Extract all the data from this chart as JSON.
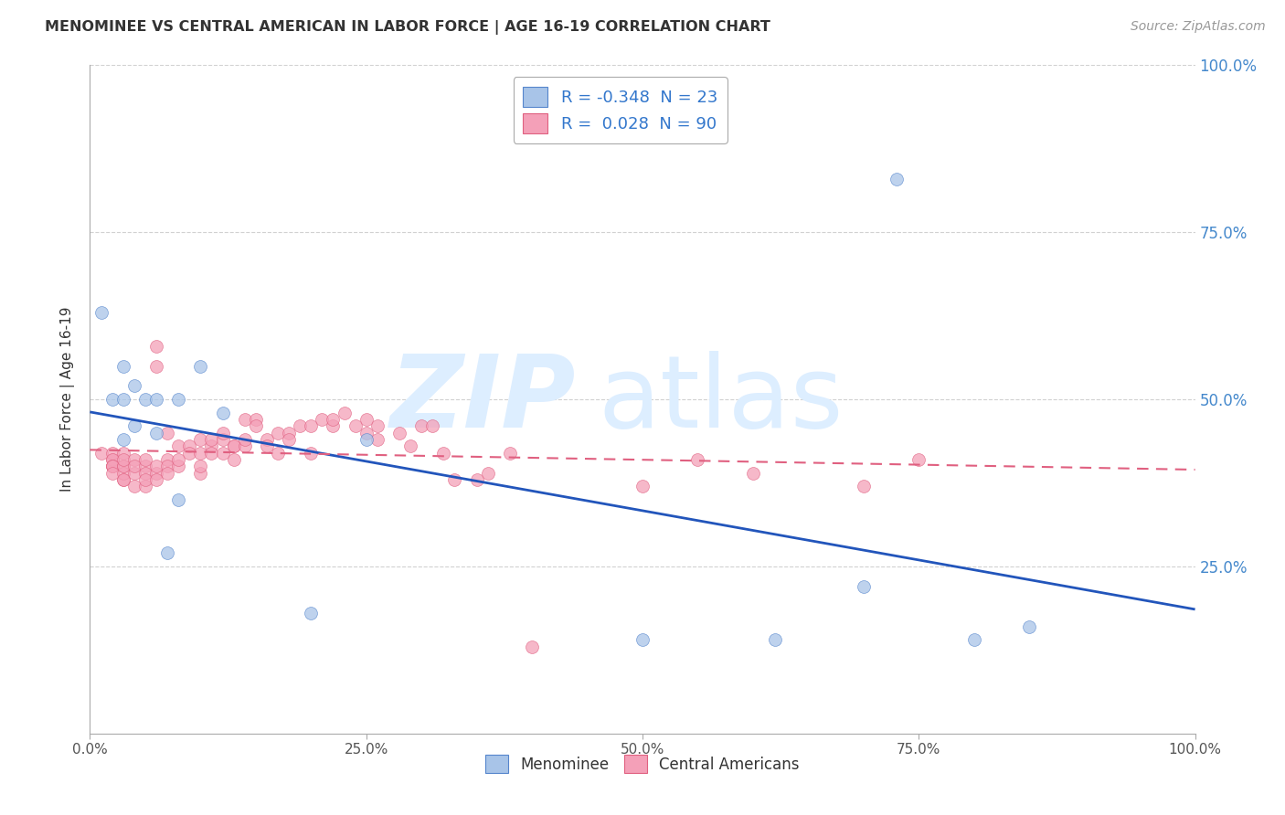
{
  "title": "MENOMINEE VS CENTRAL AMERICAN IN LABOR FORCE | AGE 16-19 CORRELATION CHART",
  "source": "Source: ZipAtlas.com",
  "ylabel": "In Labor Force | Age 16-19",
  "xlim": [
    0.0,
    1.0
  ],
  "ylim": [
    0.0,
    1.0
  ],
  "xtick_labels": [
    "0.0%",
    "25.0%",
    "50.0%",
    "75.0%",
    "100.0%"
  ],
  "xtick_vals": [
    0.0,
    0.25,
    0.5,
    0.75,
    1.0
  ],
  "ytick_labels": [
    "25.0%",
    "50.0%",
    "75.0%",
    "100.0%"
  ],
  "ytick_vals": [
    0.25,
    0.5,
    0.75,
    1.0
  ],
  "menominee_color": "#a8c4e8",
  "central_american_color": "#f4a0b8",
  "menominee_edge_color": "#5585cc",
  "central_american_edge_color": "#e06080",
  "menominee_line_color": "#2255bb",
  "central_american_line_color": "#e06080",
  "R_menominee": -0.348,
  "N_menominee": 23,
  "R_central": 0.028,
  "N_central": 90,
  "legend_color": "#3377cc",
  "background_color": "#ffffff",
  "grid_color": "#cccccc",
  "watermark_color": "#ddeeff",
  "menominee_scatter_x": [
    0.01,
    0.02,
    0.03,
    0.03,
    0.03,
    0.04,
    0.04,
    0.05,
    0.06,
    0.07,
    0.08,
    0.1,
    0.12,
    0.2,
    0.25,
    0.5,
    0.62,
    0.7,
    0.73,
    0.8,
    0.85,
    0.06,
    0.08
  ],
  "menominee_scatter_y": [
    0.63,
    0.5,
    0.55,
    0.5,
    0.44,
    0.52,
    0.46,
    0.5,
    0.5,
    0.27,
    0.5,
    0.55,
    0.48,
    0.18,
    0.44,
    0.14,
    0.14,
    0.22,
    0.83,
    0.14,
    0.16,
    0.45,
    0.35
  ],
  "central_scatter_x": [
    0.01,
    0.02,
    0.02,
    0.02,
    0.02,
    0.02,
    0.02,
    0.02,
    0.02,
    0.03,
    0.03,
    0.03,
    0.03,
    0.03,
    0.03,
    0.03,
    0.04,
    0.04,
    0.04,
    0.04,
    0.05,
    0.05,
    0.05,
    0.05,
    0.05,
    0.06,
    0.06,
    0.06,
    0.06,
    0.07,
    0.07,
    0.07,
    0.07,
    0.08,
    0.08,
    0.08,
    0.09,
    0.09,
    0.1,
    0.1,
    0.1,
    0.1,
    0.11,
    0.11,
    0.11,
    0.12,
    0.12,
    0.12,
    0.13,
    0.13,
    0.13,
    0.14,
    0.14,
    0.14,
    0.15,
    0.15,
    0.16,
    0.16,
    0.17,
    0.17,
    0.18,
    0.18,
    0.19,
    0.2,
    0.2,
    0.21,
    0.22,
    0.22,
    0.23,
    0.24,
    0.25,
    0.25,
    0.26,
    0.26,
    0.28,
    0.29,
    0.3,
    0.31,
    0.32,
    0.33,
    0.35,
    0.36,
    0.38,
    0.4,
    0.5,
    0.55,
    0.6,
    0.7,
    0.75,
    0.06
  ],
  "central_scatter_y": [
    0.42,
    0.41,
    0.4,
    0.42,
    0.4,
    0.41,
    0.4,
    0.4,
    0.39,
    0.42,
    0.38,
    0.4,
    0.39,
    0.38,
    0.4,
    0.41,
    0.39,
    0.41,
    0.4,
    0.37,
    0.4,
    0.39,
    0.37,
    0.38,
    0.41,
    0.39,
    0.4,
    0.38,
    0.58,
    0.41,
    0.45,
    0.4,
    0.39,
    0.4,
    0.41,
    0.43,
    0.43,
    0.42,
    0.44,
    0.42,
    0.39,
    0.4,
    0.43,
    0.42,
    0.44,
    0.44,
    0.45,
    0.42,
    0.43,
    0.41,
    0.43,
    0.43,
    0.47,
    0.44,
    0.47,
    0.46,
    0.44,
    0.43,
    0.42,
    0.45,
    0.45,
    0.44,
    0.46,
    0.46,
    0.42,
    0.47,
    0.46,
    0.47,
    0.48,
    0.46,
    0.47,
    0.45,
    0.44,
    0.46,
    0.45,
    0.43,
    0.46,
    0.46,
    0.42,
    0.38,
    0.38,
    0.39,
    0.42,
    0.13,
    0.37,
    0.41,
    0.39,
    0.37,
    0.41,
    0.55
  ]
}
